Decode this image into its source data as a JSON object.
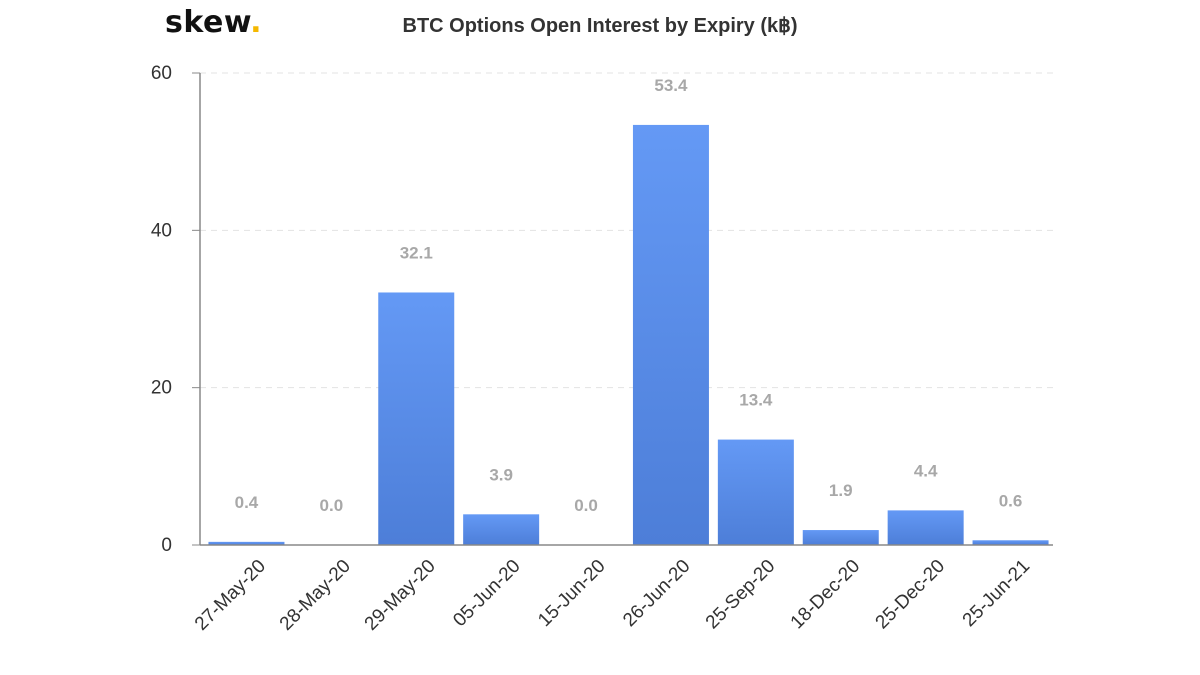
{
  "logo": {
    "text": "skew",
    "dot": "."
  },
  "chart_data": {
    "type": "bar",
    "title": "BTC Options Open Interest by Expiry (k฿)",
    "xlabel": "",
    "ylabel": "",
    "categories": [
      "27-May-20",
      "28-May-20",
      "29-May-20",
      "05-Jun-20",
      "15-Jun-20",
      "26-Jun-20",
      "25-Sep-20",
      "18-Dec-20",
      "25-Dec-20",
      "25-Jun-21"
    ],
    "values": [
      0.4,
      0.0,
      32.1,
      3.9,
      0.0,
      53.4,
      13.4,
      1.9,
      4.4,
      0.6
    ],
    "data_labels": [
      "0.4",
      "0.0",
      "32.1",
      "3.9",
      "0.0",
      "53.4",
      "13.4",
      "1.9",
      "4.4",
      "0.6"
    ],
    "ylim": [
      0,
      60
    ],
    "yticks": [
      0,
      20,
      40,
      60
    ],
    "grid": true,
    "legend": "none",
    "colors": {
      "bar_top": "#6499f5",
      "bar_bottom": "#4d7ed8",
      "data_label": "#a8a8a8",
      "logo_dot": "#f5b800"
    }
  }
}
